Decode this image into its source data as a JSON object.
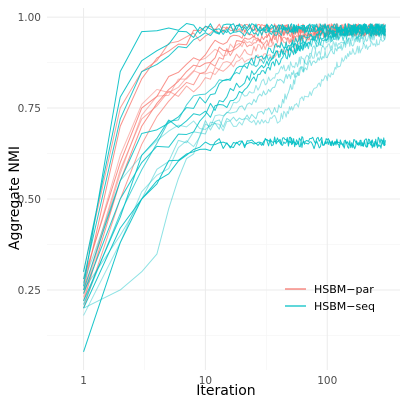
{
  "chart_data": {
    "type": "line",
    "title": "",
    "xlabel": "Iteration",
    "ylabel": "Aggregate NMI",
    "x_scale": "log10",
    "xlim": [
      1,
      300
    ],
    "ylim": [
      0.05,
      1.0
    ],
    "x_ticks": [
      1,
      10,
      100
    ],
    "x_tick_labels": [
      "1",
      "10",
      "100"
    ],
    "y_ticks": [
      0.25,
      0.5,
      0.75,
      1.0
    ],
    "y_tick_labels": [
      "0.25",
      "0.50",
      "0.75",
      "1.00"
    ],
    "grid": true,
    "legend_position": "bottom-right",
    "legend": [
      {
        "label": "HSBM−par",
        "color": "#F8766D"
      },
      {
        "label": "HSBM−seq",
        "color": "#00BFC4"
      }
    ],
    "series": [
      {
        "group": "HSBM−par",
        "color": "#F8766D",
        "opacity": 0.8,
        "x": [
          1,
          2,
          3,
          5,
          8,
          12,
          20,
          40,
          80,
          150,
          300
        ],
        "y": [
          0.25,
          0.7,
          0.83,
          0.9,
          0.95,
          0.97,
          0.97,
          0.97,
          0.97,
          0.97,
          0.97
        ]
      },
      {
        "group": "HSBM−par",
        "color": "#F8766D",
        "opacity": 0.8,
        "x": [
          1,
          2,
          3,
          5,
          8,
          12,
          20,
          40,
          80,
          150,
          300
        ],
        "y": [
          0.22,
          0.55,
          0.7,
          0.8,
          0.86,
          0.9,
          0.93,
          0.95,
          0.96,
          0.96,
          0.96
        ]
      },
      {
        "group": "HSBM−par",
        "color": "#F8766D",
        "opacity": 0.8,
        "x": [
          1,
          2,
          3,
          5,
          8,
          12,
          20,
          40,
          80,
          150,
          300
        ],
        "y": [
          0.28,
          0.6,
          0.75,
          0.82,
          0.88,
          0.92,
          0.95,
          0.96,
          0.96,
          0.97,
          0.97
        ]
      },
      {
        "group": "HSBM−par",
        "color": "#F8766D",
        "opacity": 0.7,
        "x": [
          1,
          2,
          3,
          5,
          8,
          12,
          20,
          40,
          80,
          150,
          300
        ],
        "y": [
          0.2,
          0.5,
          0.65,
          0.76,
          0.83,
          0.88,
          0.92,
          0.94,
          0.95,
          0.96,
          0.96
        ]
      },
      {
        "group": "HSBM−par",
        "color": "#F8766D",
        "opacity": 0.7,
        "x": [
          1,
          2,
          3,
          5,
          8,
          12,
          20,
          40,
          80,
          150,
          300
        ],
        "y": [
          0.3,
          0.75,
          0.85,
          0.92,
          0.94,
          0.96,
          0.97,
          0.97,
          0.97,
          0.97,
          0.97
        ]
      },
      {
        "group": "HSBM−par",
        "color": "#F8766D",
        "opacity": 0.6,
        "x": [
          1,
          2,
          3,
          5,
          8,
          12,
          20,
          40,
          80,
          150,
          300
        ],
        "y": [
          0.24,
          0.58,
          0.72,
          0.78,
          0.8,
          0.85,
          0.9,
          0.93,
          0.95,
          0.96,
          0.96
        ]
      },
      {
        "group": "HSBM−par",
        "color": "#F8766D",
        "opacity": 0.5,
        "x": [
          1,
          2,
          3,
          5,
          8,
          12,
          20,
          40,
          60
        ],
        "y": [
          0.27,
          0.62,
          0.76,
          0.81,
          0.84,
          0.85,
          0.88,
          0.9,
          0.92
        ]
      },
      {
        "group": "HSBM−par",
        "color": "#F8766D",
        "opacity": 0.5,
        "x": [
          1,
          2,
          3,
          5,
          8,
          12,
          20,
          30
        ],
        "y": [
          0.23,
          0.57,
          0.73,
          0.8,
          0.85,
          0.9,
          0.93,
          0.94
        ]
      },
      {
        "group": "HSBM−seq",
        "color": "#00BFC4",
        "opacity": 0.9,
        "x": [
          1,
          2,
          3,
          5,
          8,
          12,
          20,
          40,
          80,
          150,
          300
        ],
        "y": [
          0.26,
          0.85,
          0.96,
          0.97,
          0.97,
          0.97,
          0.97,
          0.97,
          0.97,
          0.97,
          0.97
        ]
      },
      {
        "group": "HSBM−seq",
        "color": "#00BFC4",
        "opacity": 0.9,
        "x": [
          1,
          2,
          3,
          5,
          8,
          12,
          20,
          40,
          80,
          150,
          300
        ],
        "y": [
          0.3,
          0.78,
          0.88,
          0.94,
          0.96,
          0.97,
          0.97,
          0.97,
          0.97,
          0.97,
          0.97
        ]
      },
      {
        "group": "HSBM−seq",
        "color": "#00BFC4",
        "opacity": 0.9,
        "x": [
          1,
          2,
          3,
          5,
          8,
          12,
          20,
          40,
          80,
          150,
          300
        ],
        "y": [
          0.2,
          0.42,
          0.5,
          0.6,
          0.64,
          0.65,
          0.65,
          0.66,
          0.66,
          0.65,
          0.66
        ]
      },
      {
        "group": "HSBM−seq",
        "color": "#00BFC4",
        "opacity": 0.9,
        "x": [
          1,
          2,
          3,
          5,
          8,
          12,
          20,
          40,
          80,
          150,
          300
        ],
        "y": [
          0.08,
          0.38,
          0.5,
          0.58,
          0.63,
          0.65,
          0.65,
          0.66,
          0.65,
          0.65,
          0.65
        ]
      },
      {
        "group": "HSBM−seq",
        "color": "#00BFC4",
        "opacity": 0.85,
        "x": [
          1,
          2,
          3,
          5,
          8,
          12,
          20,
          40,
          80,
          150,
          300
        ],
        "y": [
          0.22,
          0.45,
          0.62,
          0.7,
          0.72,
          0.74,
          0.8,
          0.88,
          0.94,
          0.96,
          0.96
        ]
      },
      {
        "group": "HSBM−seq",
        "color": "#00BFC4",
        "opacity": 0.85,
        "x": [
          1,
          2,
          3,
          5,
          8,
          12,
          20,
          40,
          80,
          150,
          300
        ],
        "y": [
          0.25,
          0.55,
          0.68,
          0.72,
          0.75,
          0.8,
          0.86,
          0.92,
          0.95,
          0.96,
          0.97
        ]
      },
      {
        "group": "HSBM−seq",
        "color": "#00BFC4",
        "opacity": 0.85,
        "x": [
          1,
          2,
          3,
          5,
          8,
          12,
          20,
          40,
          80,
          150,
          300
        ],
        "y": [
          0.24,
          0.5,
          0.6,
          0.66,
          0.7,
          0.76,
          0.82,
          0.9,
          0.95,
          0.96,
          0.96
        ]
      },
      {
        "group": "HSBM−seq",
        "color": "#00BFC4",
        "opacity": 0.85,
        "x": [
          1,
          2,
          3,
          5,
          8,
          12,
          20,
          40,
          80,
          150,
          300
        ],
        "y": [
          0.28,
          0.72,
          0.85,
          0.9,
          0.93,
          0.95,
          0.96,
          0.96,
          0.97,
          0.97,
          0.97
        ]
      },
      {
        "group": "HSBM−seq",
        "color": "#00BFC4",
        "opacity": 0.7,
        "x": [
          1,
          2,
          3,
          5,
          8,
          12,
          20,
          40,
          80,
          150,
          300
        ],
        "y": [
          0.21,
          0.46,
          0.58,
          0.7,
          0.78,
          0.82,
          0.86,
          0.9,
          0.93,
          0.95,
          0.96
        ]
      },
      {
        "group": "HSBM−seq",
        "color": "#00BFC4",
        "opacity": 0.45,
        "x": [
          1,
          2,
          3,
          4,
          6,
          10,
          20,
          40,
          80,
          150,
          300
        ],
        "y": [
          0.2,
          0.25,
          0.3,
          0.35,
          0.55,
          0.7,
          0.72,
          0.75,
          0.92,
          0.96,
          0.97
        ]
      },
      {
        "group": "HSBM−seq",
        "color": "#00BFC4",
        "opacity": 0.45,
        "x": [
          1,
          2,
          3,
          5,
          8,
          12,
          20,
          40,
          80,
          150,
          300
        ],
        "y": [
          0.25,
          0.4,
          0.5,
          0.62,
          0.68,
          0.7,
          0.75,
          0.82,
          0.88,
          0.93,
          0.95
        ]
      },
      {
        "group": "HSBM−seq",
        "color": "#00BFC4",
        "opacity": 0.4,
        "x": [
          1,
          2,
          3,
          5,
          8,
          12,
          20,
          40,
          80,
          150,
          300
        ],
        "y": [
          0.27,
          0.55,
          0.62,
          0.68,
          0.7,
          0.7,
          0.71,
          0.72,
          0.8,
          0.9,
          0.94
        ]
      },
      {
        "group": "HSBM−seq",
        "color": "#00BFC4",
        "opacity": 0.4,
        "x": [
          1,
          2,
          3,
          5,
          8,
          12,
          20,
          40,
          80,
          150,
          300
        ],
        "y": [
          0.18,
          0.38,
          0.52,
          0.6,
          0.66,
          0.72,
          0.78,
          0.85,
          0.9,
          0.94,
          0.96
        ]
      }
    ]
  }
}
